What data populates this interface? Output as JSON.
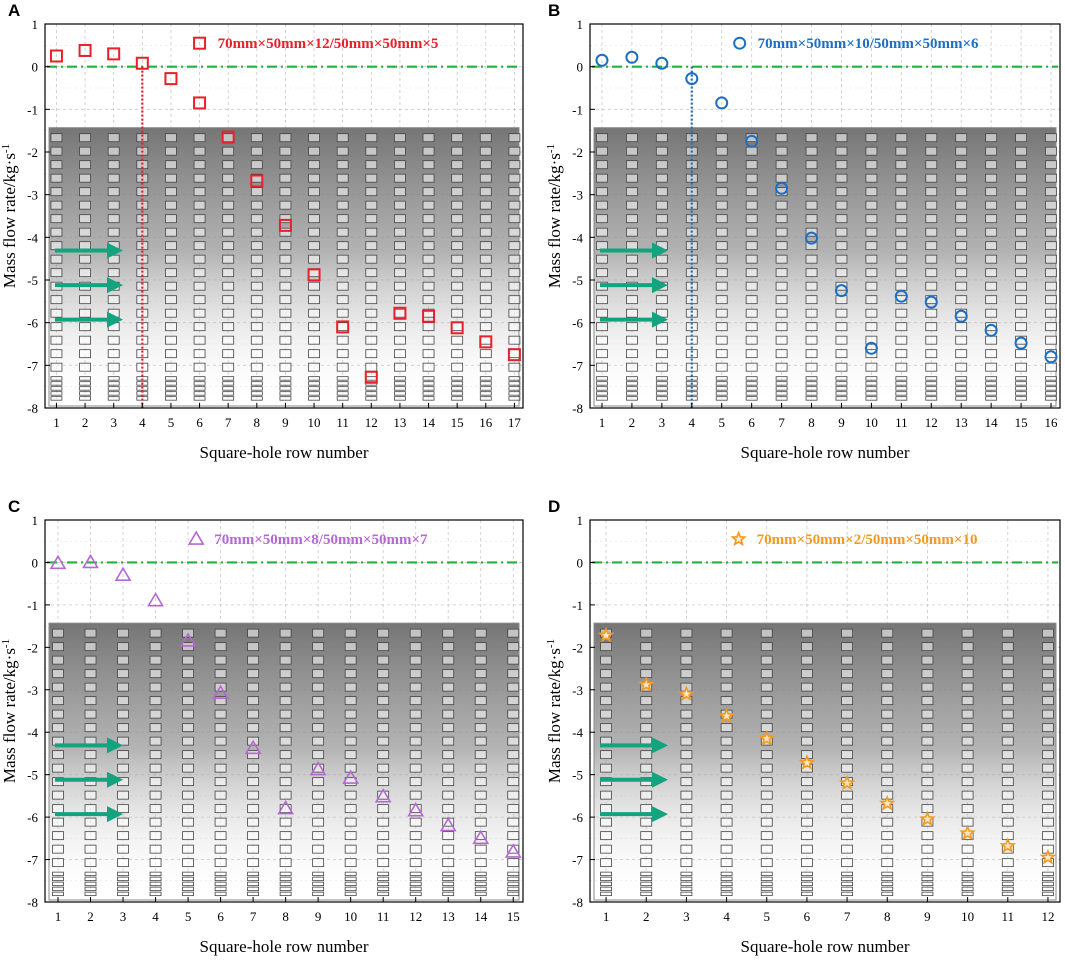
{
  "chart_data": [
    {
      "panel": "A",
      "type": "scatter",
      "series_label": "70mm×50mm×12/50mm×50mm×5",
      "marker": "square",
      "color": "#e8202a",
      "xlabel": "Square-hole row number",
      "ylabel": "Mass flow rate/kg·s",
      "ylabel_sup": "-1",
      "xlim": [
        0.6,
        17.3
      ],
      "ylim": [
        -8,
        1
      ],
      "x_ticks": [
        1,
        2,
        3,
        4,
        5,
        6,
        7,
        8,
        9,
        10,
        11,
        12,
        13,
        14,
        15,
        16,
        17
      ],
      "y_ticks": [
        1,
        0,
        -1,
        -2,
        -3,
        -4,
        -5,
        -6,
        -7,
        -8
      ],
      "points": [
        {
          "x": 1,
          "y": 0.25
        },
        {
          "x": 2,
          "y": 0.38
        },
        {
          "x": 3,
          "y": 0.3
        },
        {
          "x": 4,
          "y": 0.08
        },
        {
          "x": 6,
          "y": 0.55
        },
        {
          "x": 5,
          "y": -0.28
        },
        {
          "x": 6,
          "y": -0.85
        },
        {
          "x": 7,
          "y": -1.65
        },
        {
          "x": 8,
          "y": -2.68
        },
        {
          "x": 9,
          "y": -3.72
        },
        {
          "x": 10,
          "y": -4.88
        },
        {
          "x": 11,
          "y": -6.1
        },
        {
          "x": 12,
          "y": -7.28
        },
        {
          "x": 13,
          "y": -5.78
        },
        {
          "x": 14,
          "y": -5.85
        },
        {
          "x": 15,
          "y": -6.12
        },
        {
          "x": 16,
          "y": -6.45
        },
        {
          "x": 17,
          "y": -6.75
        }
      ],
      "legend_marker_point": {
        "x": 6,
        "y": 0.55
      },
      "reference_line_y": 0,
      "divider_x": 4,
      "inflow_arrows": 3
    },
    {
      "panel": "B",
      "type": "scatter",
      "series_label": "70mm×50mm×10/50mm×50mm×6",
      "marker": "circle",
      "color": "#1c6fc4",
      "xlabel": "Square-hole row number",
      "ylabel": "Mass flow rate/kg·s",
      "ylabel_sup": "-1",
      "xlim": [
        0.6,
        16.3
      ],
      "ylim": [
        -8,
        1
      ],
      "x_ticks": [
        1,
        2,
        3,
        4,
        5,
        6,
        7,
        8,
        9,
        10,
        11,
        12,
        13,
        14,
        15,
        16
      ],
      "y_ticks": [
        1,
        0,
        -1,
        -2,
        -3,
        -4,
        -5,
        -6,
        -7,
        -8
      ],
      "points": [
        {
          "x": 1,
          "y": 0.15
        },
        {
          "x": 2,
          "y": 0.22
        },
        {
          "x": 3,
          "y": 0.08
        },
        {
          "x": 4,
          "y": -0.28
        },
        {
          "x": 5.6,
          "y": 0.55
        },
        {
          "x": 5,
          "y": -0.85
        },
        {
          "x": 6,
          "y": -1.75
        },
        {
          "x": 7,
          "y": -2.85
        },
        {
          "x": 8,
          "y": -4.02
        },
        {
          "x": 9,
          "y": -5.25
        },
        {
          "x": 10,
          "y": -6.6
        },
        {
          "x": 11,
          "y": -5.38
        },
        {
          "x": 12,
          "y": -5.52
        },
        {
          "x": 13,
          "y": -5.85
        },
        {
          "x": 14,
          "y": -6.18
        },
        {
          "x": 15,
          "y": -6.48
        },
        {
          "x": 16,
          "y": -6.8
        }
      ],
      "legend_marker_point": {
        "x": 5.6,
        "y": 0.55
      },
      "reference_line_y": 0,
      "divider_x": 4,
      "inflow_arrows": 3
    },
    {
      "panel": "C",
      "type": "scatter",
      "series_label": "70mm×50mm×8/50mm×50mm×7",
      "marker": "triangle",
      "color": "#b468d4",
      "xlabel": "Square-hole row number",
      "ylabel": "Mass flow rate/kg·s",
      "ylabel_sup": "-1",
      "xlim": [
        0.6,
        15.3
      ],
      "ylim": [
        -8,
        1
      ],
      "x_ticks": [
        1,
        2,
        3,
        4,
        5,
        6,
        7,
        8,
        9,
        10,
        11,
        12,
        13,
        14,
        15
      ],
      "y_ticks": [
        1,
        0,
        -1,
        -2,
        -3,
        -4,
        -5,
        -6,
        -7,
        -8
      ],
      "points": [
        {
          "x": 1,
          "y": -0.02
        },
        {
          "x": 2,
          "y": 0.0
        },
        {
          "x": 3,
          "y": -0.3
        },
        {
          "x": 4,
          "y": -0.9
        },
        {
          "x": 5.25,
          "y": 0.55
        },
        {
          "x": 5,
          "y": -1.85
        },
        {
          "x": 6,
          "y": -3.08
        },
        {
          "x": 7,
          "y": -4.38
        },
        {
          "x": 8,
          "y": -5.8
        },
        {
          "x": 9,
          "y": -4.88
        },
        {
          "x": 10,
          "y": -5.08
        },
        {
          "x": 11,
          "y": -5.52
        },
        {
          "x": 12,
          "y": -5.85
        },
        {
          "x": 13,
          "y": -6.2
        },
        {
          "x": 14,
          "y": -6.5
        },
        {
          "x": 15,
          "y": -6.82
        }
      ],
      "legend_marker_point": {
        "x": 5.25,
        "y": 0.55
      },
      "reference_line_y": 0,
      "divider_x": null,
      "inflow_arrows": 3
    },
    {
      "panel": "D",
      "type": "scatter",
      "series_label": "70mm×50mm×2/50mm×50mm×10",
      "marker": "star",
      "color": "#f39a1e",
      "xlabel": "Square-hole row number",
      "ylabel": "Mass flow rate/kg·s",
      "ylabel_sup": "-1",
      "xlim": [
        0.6,
        12.3
      ],
      "ylim": [
        -8,
        1
      ],
      "x_ticks": [
        1,
        2,
        3,
        4,
        5,
        6,
        7,
        8,
        9,
        10,
        11,
        12
      ],
      "y_ticks": [
        1,
        0,
        -1,
        -2,
        -3,
        -4,
        -5,
        -6,
        -7,
        -8
      ],
      "points": [
        {
          "x": 1,
          "y": -1.72
        },
        {
          "x": 2,
          "y": -2.88
        },
        {
          "x": 3,
          "y": -3.1
        },
        {
          "x": 4,
          "y": -3.62
        },
        {
          "x": 4.3,
          "y": 0.55
        },
        {
          "x": 5,
          "y": -4.15
        },
        {
          "x": 6,
          "y": -4.72
        },
        {
          "x": 7,
          "y": -5.2
        },
        {
          "x": 8,
          "y": -5.68
        },
        {
          "x": 9,
          "y": -6.05
        },
        {
          "x": 10,
          "y": -6.38
        },
        {
          "x": 11,
          "y": -6.68
        },
        {
          "x": 12,
          "y": -6.95
        }
      ],
      "legend_marker_point": {
        "x": 4.3,
        "y": 0.55
      },
      "reference_line_y": 0,
      "divider_x": null,
      "inflow_arrows": 3
    }
  ],
  "style": {
    "reference_line_color": "#1fb33a",
    "arrow_color": "#13a37e",
    "grid_color": "#c8c8c8",
    "hole_stroke_color": "#444444"
  }
}
